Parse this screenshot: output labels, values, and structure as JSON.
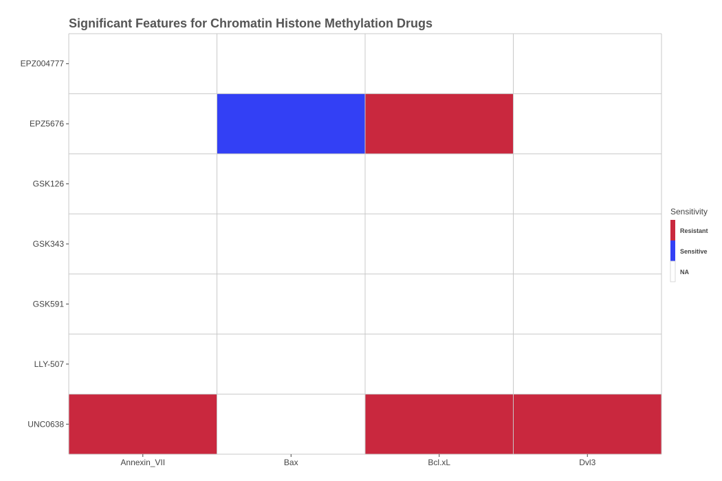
{
  "chart_data": {
    "type": "heatmap",
    "title": "Significant Features for Chromatin Histone Methylation Drugs",
    "xlabel": "",
    "ylabel": "",
    "x_categories": [
      "Annexin_VII",
      "Bax",
      "Bcl.xL",
      "Dvl3"
    ],
    "y_categories": [
      "EPZ004777",
      "EPZ5676",
      "GSK126",
      "GSK343",
      "GSK591",
      "LLY-507",
      "UNC0638"
    ],
    "cells": [
      {
        "y": "EPZ004777",
        "x": "Annexin_VII",
        "value": "NA"
      },
      {
        "y": "EPZ004777",
        "x": "Bax",
        "value": "NA"
      },
      {
        "y": "EPZ004777",
        "x": "Bcl.xL",
        "value": "NA"
      },
      {
        "y": "EPZ004777",
        "x": "Dvl3",
        "value": "NA"
      },
      {
        "y": "EPZ5676",
        "x": "Annexin_VII",
        "value": "NA"
      },
      {
        "y": "EPZ5676",
        "x": "Bax",
        "value": "Sensitive"
      },
      {
        "y": "EPZ5676",
        "x": "Bcl.xL",
        "value": "Resistant"
      },
      {
        "y": "EPZ5676",
        "x": "Dvl3",
        "value": "NA"
      },
      {
        "y": "GSK126",
        "x": "Annexin_VII",
        "value": "NA"
      },
      {
        "y": "GSK126",
        "x": "Bax",
        "value": "NA"
      },
      {
        "y": "GSK126",
        "x": "Bcl.xL",
        "value": "NA"
      },
      {
        "y": "GSK126",
        "x": "Dvl3",
        "value": "NA"
      },
      {
        "y": "GSK343",
        "x": "Annexin_VII",
        "value": "NA"
      },
      {
        "y": "GSK343",
        "x": "Bax",
        "value": "NA"
      },
      {
        "y": "GSK343",
        "x": "Bcl.xL",
        "value": "NA"
      },
      {
        "y": "GSK343",
        "x": "Dvl3",
        "value": "NA"
      },
      {
        "y": "GSK591",
        "x": "Annexin_VII",
        "value": "NA"
      },
      {
        "y": "GSK591",
        "x": "Bax",
        "value": "NA"
      },
      {
        "y": "GSK591",
        "x": "Bcl.xL",
        "value": "NA"
      },
      {
        "y": "GSK591",
        "x": "Dvl3",
        "value": "NA"
      },
      {
        "y": "LLY-507",
        "x": "Annexin_VII",
        "value": "NA"
      },
      {
        "y": "LLY-507",
        "x": "Bax",
        "value": "NA"
      },
      {
        "y": "LLY-507",
        "x": "Bcl.xL",
        "value": "NA"
      },
      {
        "y": "LLY-507",
        "x": "Dvl3",
        "value": "NA"
      },
      {
        "y": "UNC0638",
        "x": "Annexin_VII",
        "value": "Resistant"
      },
      {
        "y": "UNC0638",
        "x": "Bax",
        "value": "NA"
      },
      {
        "y": "UNC0638",
        "x": "Bcl.xL",
        "value": "Resistant"
      },
      {
        "y": "UNC0638",
        "x": "Dvl3",
        "value": "Resistant"
      }
    ],
    "legend": {
      "title": "Sensitivity",
      "position": "right",
      "entries": [
        {
          "label": "Resistant",
          "color": "#c9283e"
        },
        {
          "label": "Sensitive",
          "color": "#3340f5"
        },
        {
          "label": "NA",
          "color": "#ffffff"
        }
      ]
    },
    "grid": true,
    "grid_color": "#c8c8c8"
  }
}
